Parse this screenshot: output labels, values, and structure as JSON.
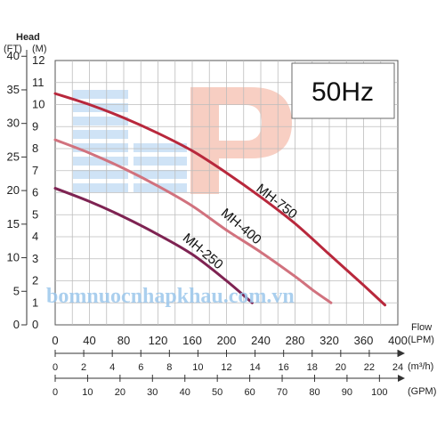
{
  "chart_data": {
    "type": "line",
    "title": "",
    "annotation": "50Hz",
    "watermark_text": "bomnuocnhapkhau.com.vn",
    "y_axis": {
      "title": "Head",
      "units": [
        "(FT)",
        "(M)"
      ],
      "m_range": [
        0,
        12
      ],
      "m_ticks": [
        "0",
        "1",
        "2",
        "3",
        "4",
        "5",
        "6",
        "7",
        "8",
        "9",
        "10",
        "11",
        "12"
      ],
      "ft_ticks": [
        {
          "label": "0",
          "value": 0
        },
        {
          "label": "5",
          "value": 5
        },
        {
          "label": "10",
          "value": 10
        },
        {
          "label": "15",
          "value": 15
        },
        {
          "label": "20",
          "value": 20
        },
        {
          "label": "25",
          "value": 25
        },
        {
          "label": "30",
          "value": 30
        },
        {
          "label": "35",
          "value": 35
        },
        {
          "label": "40",
          "value": 40
        }
      ]
    },
    "x_axes": [
      {
        "title": "Flow",
        "unit": "(LPM)",
        "range": [
          0,
          400
        ],
        "ticks": [
          {
            "label": "0",
            "value": 0
          },
          {
            "label": "40",
            "value": 40
          },
          {
            "label": "80",
            "value": 80
          },
          {
            "label": "120",
            "value": 120
          },
          {
            "label": "160",
            "value": 160
          },
          {
            "label": "200",
            "value": 200
          },
          {
            "label": "240",
            "value": 240
          },
          {
            "label": "280",
            "value": 280
          },
          {
            "label": "320",
            "value": 320
          },
          {
            "label": "360",
            "value": 360
          },
          {
            "label": "400",
            "value": 400
          }
        ]
      },
      {
        "unit": "(m³/h)",
        "ticks": [
          {
            "label": "0",
            "value": 0
          },
          {
            "label": "2",
            "value": 2
          },
          {
            "label": "4",
            "value": 4
          },
          {
            "label": "6",
            "value": 6
          },
          {
            "label": "8",
            "value": 8
          },
          {
            "label": "10",
            "value": 10
          },
          {
            "label": "12",
            "value": 12
          },
          {
            "label": "14",
            "value": 14
          },
          {
            "label": "16",
            "value": 16
          },
          {
            "label": "18",
            "value": 18
          },
          {
            "label": "20",
            "value": 20
          },
          {
            "label": "22",
            "value": 22
          },
          {
            "label": "24",
            "value": 24
          }
        ]
      },
      {
        "unit": "(GPM)",
        "ticks": [
          {
            "label": "0",
            "value": 0
          },
          {
            "label": "10",
            "value": 10
          },
          {
            "label": "20",
            "value": 20
          },
          {
            "label": "30",
            "value": 30
          },
          {
            "label": "40",
            "value": 40
          },
          {
            "label": "50",
            "value": 50
          },
          {
            "label": "60",
            "value": 60
          },
          {
            "label": "70",
            "value": 70
          },
          {
            "label": "80",
            "value": 80
          },
          {
            "label": "90",
            "value": 90
          },
          {
            "label": "100",
            "value": 100
          }
        ]
      }
    ],
    "series": [
      {
        "name": "MH-750",
        "color": "#b8283c",
        "x": [
          0,
          40,
          80,
          120,
          160,
          200,
          240,
          280,
          320,
          340,
          360,
          385
        ],
        "y": [
          10.5,
          10.0,
          9.4,
          8.7,
          7.9,
          6.9,
          5.8,
          4.6,
          3.2,
          2.5,
          1.8,
          0.9
        ]
      },
      {
        "name": "MH-400",
        "color": "#d1727e",
        "x": [
          0,
          40,
          80,
          120,
          160,
          200,
          240,
          280,
          300,
          322
        ],
        "y": [
          8.4,
          7.8,
          7.1,
          6.3,
          5.4,
          4.3,
          3.3,
          2.2,
          1.6,
          1.0
        ]
      },
      {
        "name": "MH-250",
        "color": "#7e2352",
        "x": [
          0,
          40,
          80,
          120,
          160,
          200,
          230
        ],
        "y": [
          6.2,
          5.6,
          4.9,
          4.1,
          3.2,
          2.0,
          1.0
        ]
      }
    ],
    "grid": true,
    "legend": "none"
  }
}
